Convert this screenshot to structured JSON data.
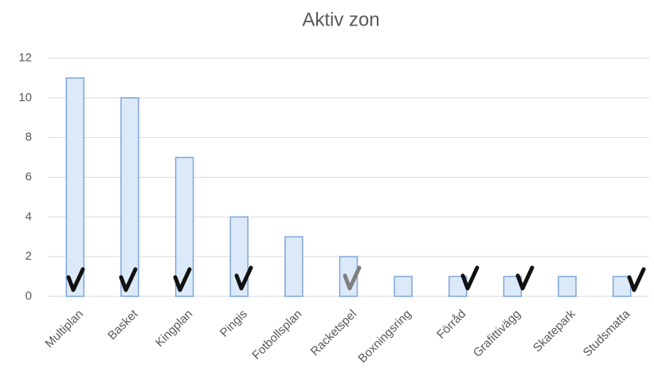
{
  "chart_data": {
    "type": "bar",
    "title": "Aktiv zon",
    "categories": [
      "Multiplan",
      "Basket",
      "Kingplan",
      "Pingis",
      "Fotbollsplan",
      "Racketspel",
      "Boxningsring",
      "Förråd",
      "Grafittivägg",
      "Skatepark",
      "Studsmatta"
    ],
    "values": [
      11,
      10,
      7,
      4,
      3,
      2,
      1,
      1,
      1,
      1,
      1
    ],
    "color": "#dce9f8",
    "edge_color": "#7fa6d9",
    "ylim": [
      0,
      12
    ],
    "yticks": [
      0,
      2,
      4,
      6,
      8,
      10,
      12
    ],
    "grid": true
  }
}
